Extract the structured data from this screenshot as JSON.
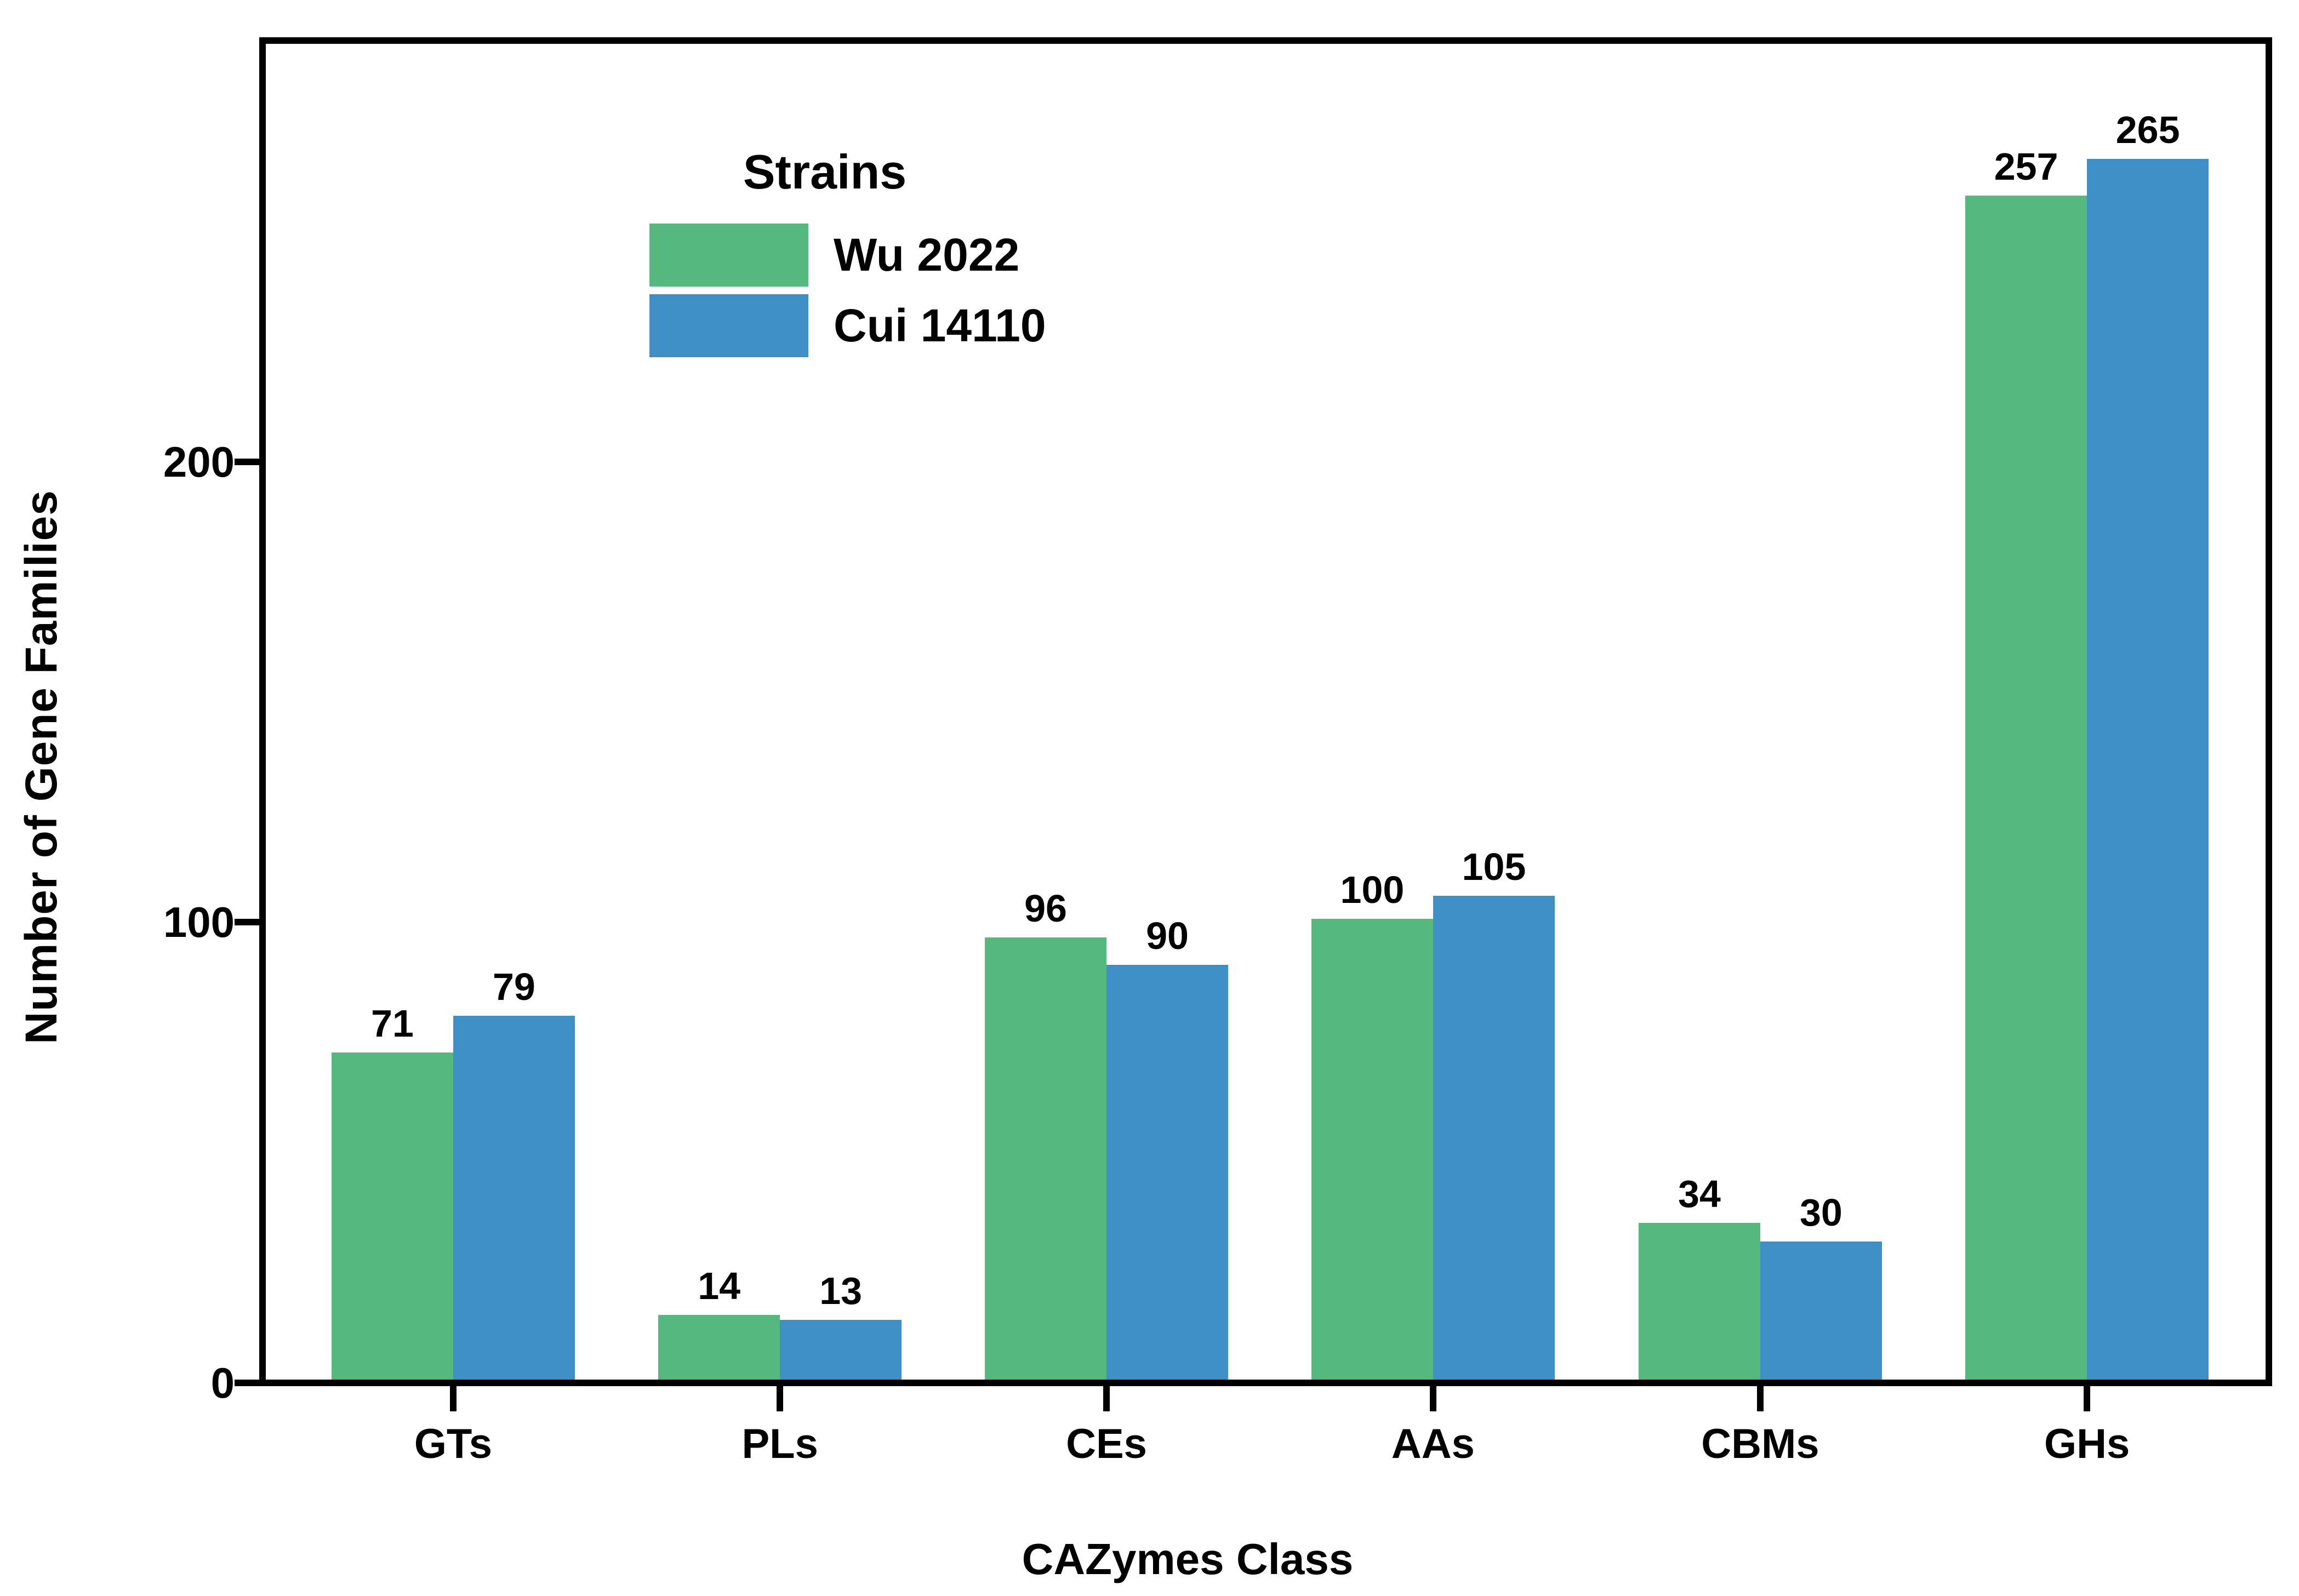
{
  "legend": {
    "title": "Strains",
    "items": [
      {
        "label": "Wu 2022",
        "color": "#55B97D"
      },
      {
        "label": "Cui 14110",
        "color": "#3E8FC5"
      }
    ]
  },
  "axes": {
    "y_tick_labels": [
      "0",
      "100",
      "200"
    ]
  },
  "colors": {
    "green": "#55B97D",
    "blue": "#3E8FC5",
    "axis": "#000000",
    "background": "#ffffff"
  },
  "chart_data": {
    "type": "bar",
    "title": "",
    "xlabel": "CAZymes Class",
    "ylabel": "Number of Gene Families",
    "categories": [
      "GTs",
      "PLs",
      "CEs",
      "AAs",
      "CBMs",
      "GHs"
    ],
    "series": [
      {
        "name": "Wu 2022",
        "color": "#55B97D",
        "values": [
          71,
          14,
          96,
          100,
          34,
          257
        ]
      },
      {
        "name": "Cui 14110",
        "color": "#3E8FC5",
        "values": [
          79,
          13,
          90,
          105,
          30,
          265
        ]
      }
    ],
    "yticks": [
      0,
      100,
      200
    ],
    "ylim": [
      0,
      290
    ],
    "grid": false,
    "legend_position": "upper left",
    "bar_value_labels": true
  }
}
